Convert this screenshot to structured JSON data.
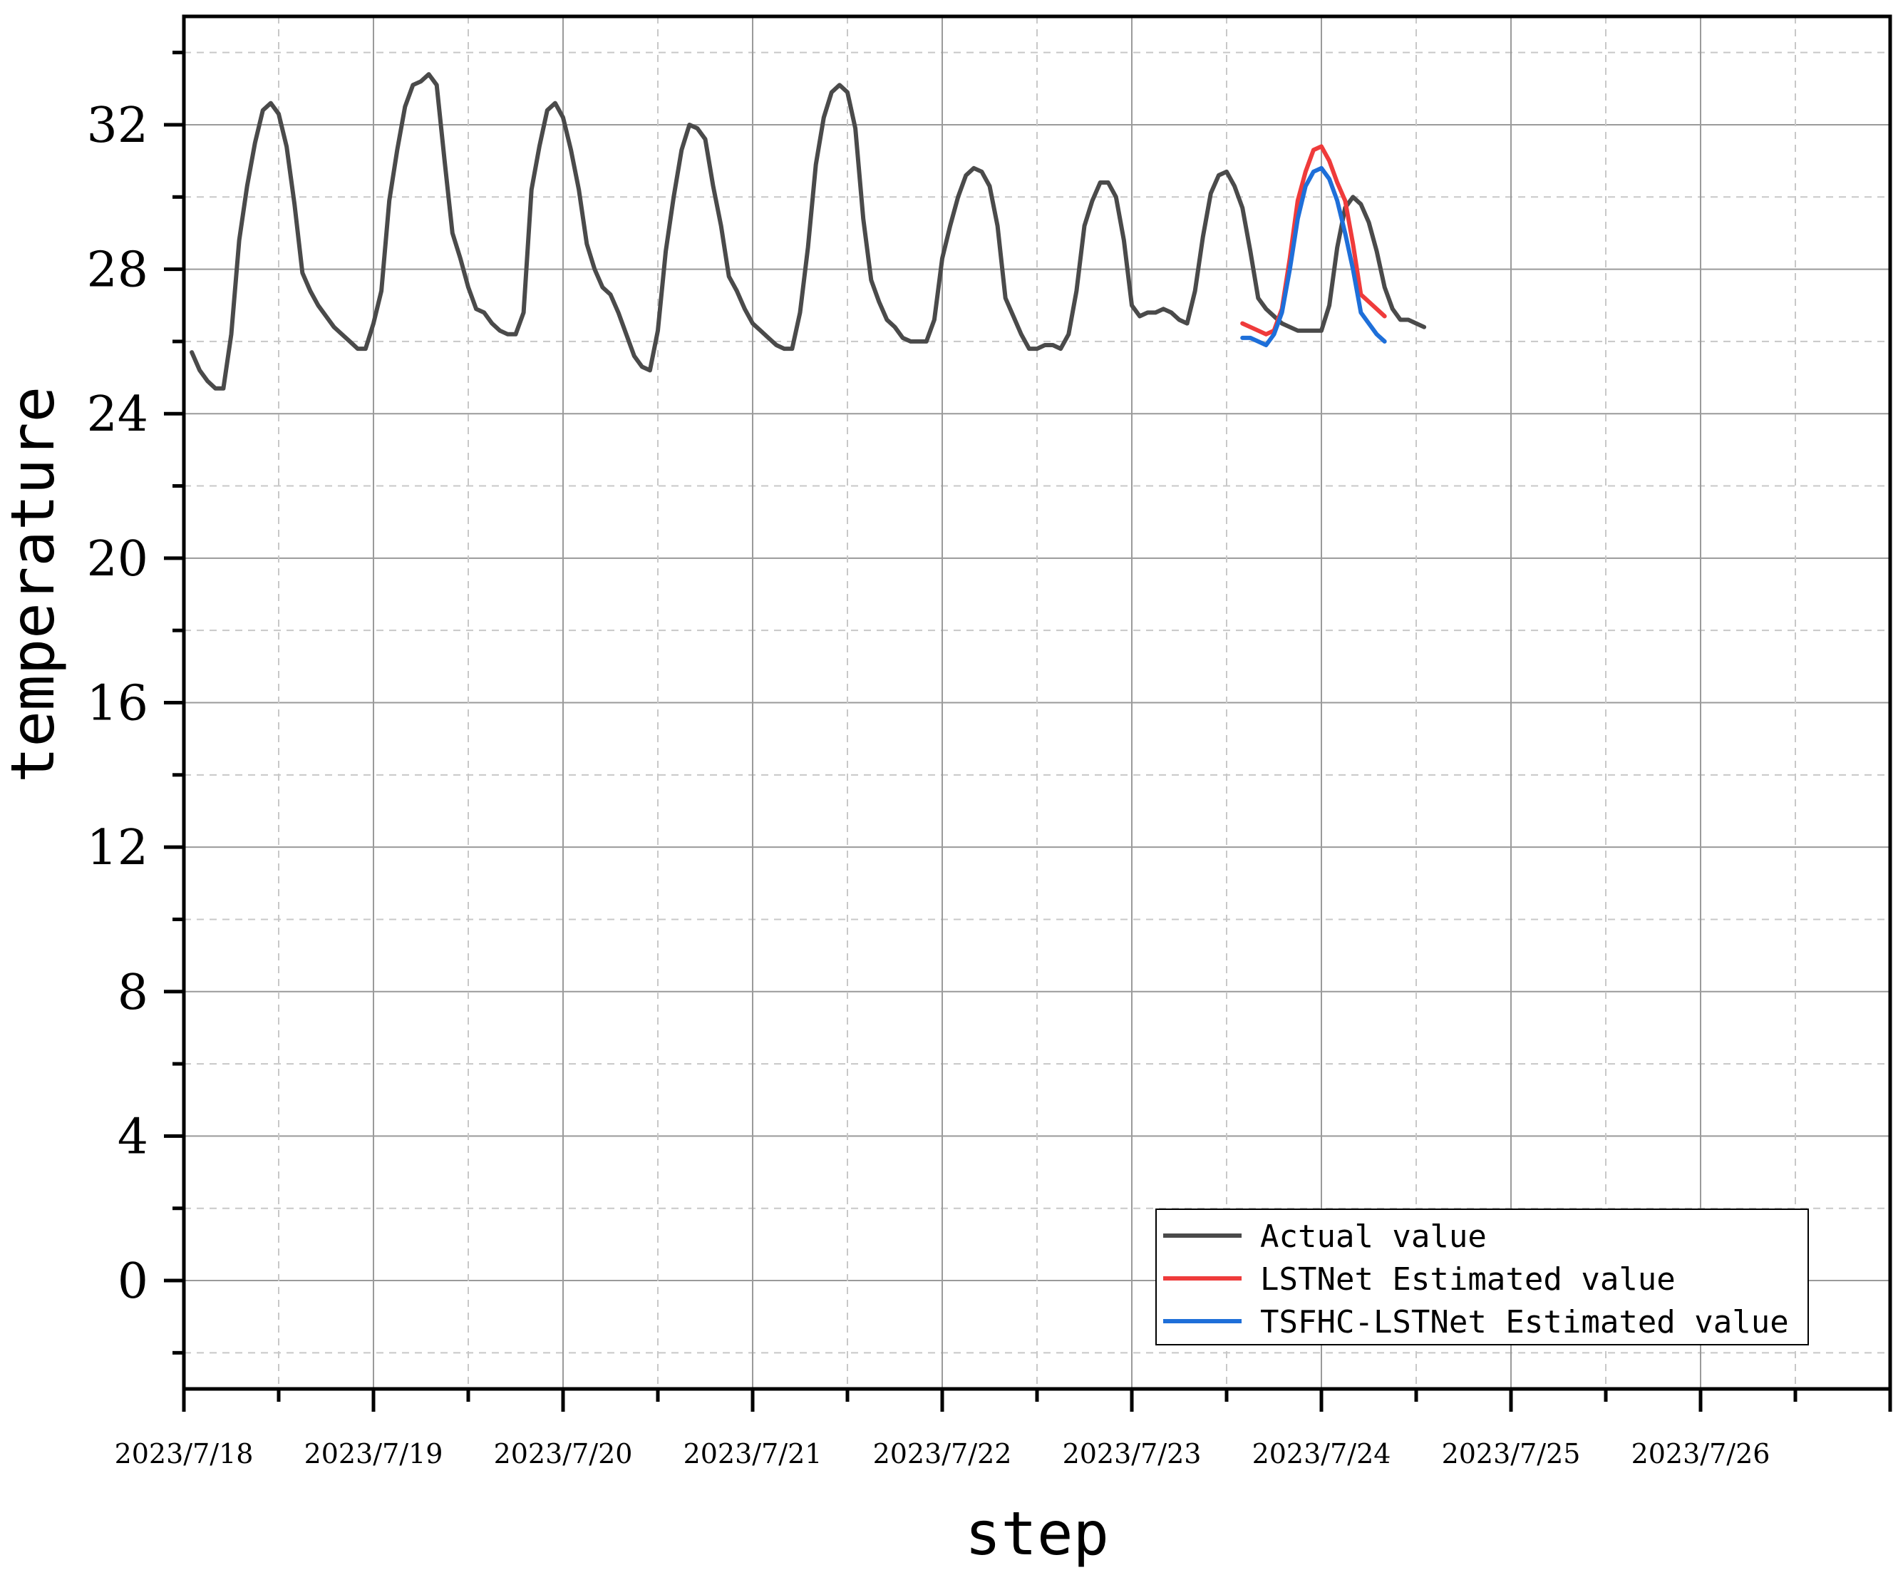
{
  "chart_data": {
    "type": "line",
    "title": "",
    "xlabel": "step",
    "ylabel": "temperature",
    "x_tick_labels": [
      "2023/7/18",
      "2023/7/19",
      "2023/7/20",
      "2023/7/21",
      "2023/7/22",
      "2023/7/23",
      "2023/7/24",
      "2023/7/25",
      "2023/7/26"
    ],
    "y_ticks": [
      0,
      4,
      8,
      12,
      16,
      20,
      24,
      28,
      32
    ],
    "xlim": [
      0,
      216
    ],
    "ylim": [
      -3,
      35
    ],
    "x_unit": "hour step from 2023/7/18 00:00 (24 steps per day)",
    "grid": true,
    "legend_position": "bottom-right",
    "series": [
      {
        "name": "Actual value",
        "color": "#4a4a4a",
        "points": [
          [
            1,
            25.7
          ],
          [
            2,
            25.2
          ],
          [
            3,
            24.9
          ],
          [
            4,
            24.7
          ],
          [
            5,
            24.7
          ],
          [
            6,
            26.2
          ],
          [
            7,
            28.8
          ],
          [
            8,
            30.3
          ],
          [
            9,
            31.5
          ],
          [
            10,
            32.4
          ],
          [
            11,
            32.6
          ],
          [
            12,
            32.3
          ],
          [
            13,
            31.4
          ],
          [
            14,
            29.8
          ],
          [
            15,
            27.9
          ],
          [
            16,
            27.4
          ],
          [
            17,
            27.0
          ],
          [
            18,
            26.7
          ],
          [
            19,
            26.4
          ],
          [
            20,
            26.2
          ],
          [
            21,
            26.0
          ],
          [
            22,
            25.8
          ],
          [
            23,
            25.8
          ],
          [
            24,
            26.5
          ],
          [
            25,
            27.4
          ],
          [
            26,
            29.9
          ],
          [
            27,
            31.3
          ],
          [
            28,
            32.5
          ],
          [
            29,
            33.1
          ],
          [
            30,
            33.2
          ],
          [
            31,
            33.4
          ],
          [
            32,
            33.1
          ],
          [
            33,
            31.0
          ],
          [
            34,
            29.0
          ],
          [
            35,
            28.3
          ],
          [
            36,
            27.5
          ],
          [
            37,
            26.9
          ],
          [
            38,
            26.8
          ],
          [
            39,
            26.5
          ],
          [
            40,
            26.3
          ],
          [
            41,
            26.2
          ],
          [
            42,
            26.2
          ],
          [
            43,
            26.8
          ],
          [
            44,
            30.2
          ],
          [
            45,
            31.4
          ],
          [
            46,
            32.4
          ],
          [
            47,
            32.6
          ],
          [
            48,
            32.2
          ],
          [
            49,
            31.3
          ],
          [
            50,
            30.2
          ],
          [
            51,
            28.7
          ],
          [
            52,
            28.0
          ],
          [
            53,
            27.5
          ],
          [
            54,
            27.3
          ],
          [
            55,
            26.8
          ],
          [
            56,
            26.2
          ],
          [
            57,
            25.6
          ],
          [
            58,
            25.3
          ],
          [
            59,
            25.2
          ],
          [
            60,
            26.3
          ],
          [
            61,
            28.5
          ],
          [
            62,
            30.0
          ],
          [
            63,
            31.3
          ],
          [
            64,
            32.0
          ],
          [
            65,
            31.9
          ],
          [
            66,
            31.6
          ],
          [
            67,
            30.3
          ],
          [
            68,
            29.2
          ],
          [
            69,
            27.8
          ],
          [
            70,
            27.4
          ],
          [
            71,
            26.9
          ],
          [
            72,
            26.5
          ],
          [
            73,
            26.3
          ],
          [
            74,
            26.1
          ],
          [
            75,
            25.9
          ],
          [
            76,
            25.8
          ],
          [
            77,
            25.8
          ],
          [
            78,
            26.8
          ],
          [
            79,
            28.6
          ],
          [
            80,
            30.9
          ],
          [
            81,
            32.2
          ],
          [
            82,
            32.9
          ],
          [
            83,
            33.1
          ],
          [
            84,
            32.9
          ],
          [
            85,
            31.9
          ],
          [
            86,
            29.4
          ],
          [
            87,
            27.7
          ],
          [
            88,
            27.1
          ],
          [
            89,
            26.6
          ],
          [
            90,
            26.4
          ],
          [
            91,
            26.1
          ],
          [
            92,
            26.0
          ],
          [
            93,
            26.0
          ],
          [
            94,
            26.0
          ],
          [
            95,
            26.6
          ],
          [
            96,
            28.3
          ],
          [
            97,
            29.2
          ],
          [
            98,
            30.0
          ],
          [
            99,
            30.6
          ],
          [
            100,
            30.8
          ],
          [
            101,
            30.7
          ],
          [
            102,
            30.3
          ],
          [
            103,
            29.2
          ],
          [
            104,
            27.2
          ],
          [
            105,
            26.7
          ],
          [
            106,
            26.2
          ],
          [
            107,
            25.8
          ],
          [
            108,
            25.8
          ],
          [
            109,
            25.9
          ],
          [
            110,
            25.9
          ],
          [
            111,
            25.8
          ],
          [
            112,
            26.2
          ],
          [
            113,
            27.4
          ],
          [
            114,
            29.2
          ],
          [
            115,
            29.9
          ],
          [
            116,
            30.4
          ],
          [
            117,
            30.4
          ],
          [
            118,
            30.0
          ],
          [
            119,
            28.8
          ],
          [
            120,
            27.0
          ],
          [
            121,
            26.7
          ],
          [
            122,
            26.8
          ],
          [
            123,
            26.8
          ],
          [
            124,
            26.9
          ],
          [
            125,
            26.8
          ],
          [
            126,
            26.6
          ],
          [
            127,
            26.5
          ],
          [
            128,
            27.4
          ],
          [
            129,
            28.9
          ],
          [
            130,
            30.1
          ],
          [
            131,
            30.6
          ],
          [
            132,
            30.7
          ],
          [
            133,
            30.3
          ],
          [
            134,
            29.7
          ],
          [
            135,
            28.5
          ],
          [
            136,
            27.2
          ],
          [
            137,
            26.9
          ],
          [
            138,
            26.7
          ],
          [
            139,
            26.5
          ],
          [
            140,
            26.4
          ],
          [
            141,
            26.3
          ],
          [
            142,
            26.3
          ],
          [
            143,
            26.3
          ],
          [
            144,
            26.3
          ],
          [
            145,
            27.0
          ],
          [
            146,
            28.6
          ],
          [
            147,
            29.7
          ],
          [
            148,
            30.0
          ],
          [
            149,
            29.8
          ],
          [
            150,
            29.3
          ],
          [
            151,
            28.5
          ],
          [
            152,
            27.5
          ],
          [
            153,
            26.9
          ],
          [
            154,
            26.6
          ],
          [
            155,
            26.6
          ],
          [
            156,
            26.5
          ],
          [
            157,
            26.4
          ]
        ]
      },
      {
        "name": "LSTNet Estimated value",
        "color": "#ef3b3b",
        "points": [
          [
            134,
            26.5
          ],
          [
            135,
            26.4
          ],
          [
            136,
            26.3
          ],
          [
            137,
            26.2
          ],
          [
            138,
            26.3
          ],
          [
            139,
            26.9
          ],
          [
            140,
            28.3
          ],
          [
            141,
            29.9
          ],
          [
            142,
            30.7
          ],
          [
            143,
            31.3
          ],
          [
            144,
            31.4
          ],
          [
            145,
            31.0
          ],
          [
            146,
            30.4
          ],
          [
            147,
            29.9
          ],
          [
            148,
            28.7
          ],
          [
            149,
            27.3
          ],
          [
            150,
            27.1
          ],
          [
            151,
            26.9
          ],
          [
            152,
            26.7
          ]
        ]
      },
      {
        "name": "TSFHC-LSTNet Estimated value",
        "color": "#1e6fd9",
        "points": [
          [
            134,
            26.1
          ],
          [
            135,
            26.1
          ],
          [
            136,
            26.0
          ],
          [
            137,
            25.9
          ],
          [
            138,
            26.2
          ],
          [
            139,
            26.8
          ],
          [
            140,
            28.0
          ],
          [
            141,
            29.4
          ],
          [
            142,
            30.3
          ],
          [
            143,
            30.7
          ],
          [
            144,
            30.8
          ],
          [
            145,
            30.5
          ],
          [
            146,
            29.9
          ],
          [
            147,
            29.0
          ],
          [
            148,
            28.0
          ],
          [
            149,
            26.8
          ],
          [
            150,
            26.5
          ],
          [
            151,
            26.2
          ],
          [
            152,
            26.0
          ]
        ]
      }
    ]
  }
}
